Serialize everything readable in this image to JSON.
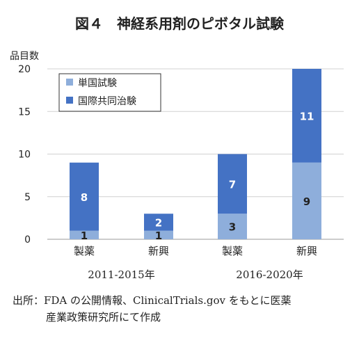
{
  "title": "図４　神経系用剤のピボタル試験",
  "source": {
    "line1": "出所：FDA の公開情報、ClinicalTrials.gov をもとに医薬",
    "line2": "産業政策研究所にて作成"
  },
  "chart_data": {
    "type": "bar",
    "stacked": true,
    "ylabel": "品目数",
    "ylim": [
      0,
      20
    ],
    "yticks": [
      0,
      5,
      10,
      15,
      20
    ],
    "grid": true,
    "legend_position": "top-left",
    "groups": [
      {
        "label": "2011-2015年",
        "categories": [
          "製薬",
          "新興"
        ]
      },
      {
        "label": "2016-2020年",
        "categories": [
          "製薬",
          "新興"
        ]
      }
    ],
    "categories": [
      "製薬",
      "新興",
      "製薬",
      "新興"
    ],
    "series": [
      {
        "name": "単国試験",
        "color": "#8eaedb",
        "values": [
          1,
          1,
          3,
          9
        ]
      },
      {
        "name": "国際共同治験",
        "color": "#4472c4",
        "values": [
          8,
          2,
          7,
          11
        ]
      }
    ]
  }
}
